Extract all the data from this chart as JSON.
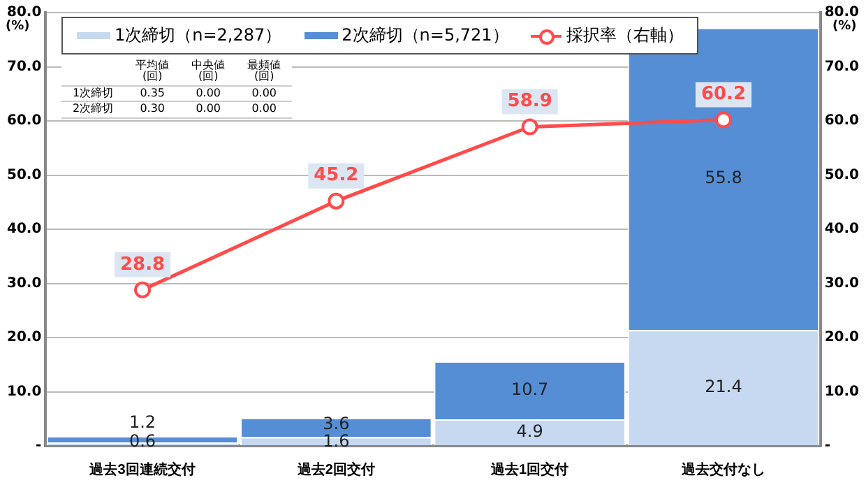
{
  "chart_data": {
    "type": "bar",
    "stacked": true,
    "categories": [
      "過去3回連続交付",
      "過去2回交付",
      "過去1回交付",
      "過去交付なし"
    ],
    "series": [
      {
        "name": "1次締切（n=2,287）",
        "color": "#c6d9f1",
        "values": [
          0.6,
          1.6,
          4.9,
          21.4
        ]
      },
      {
        "name": "2次締切（n=5,721）",
        "color": "#558ed5",
        "values": [
          1.2,
          3.6,
          10.7,
          55.8
        ]
      },
      {
        "name": "採択率（右軸）",
        "type": "line",
        "axis": "y2",
        "color": "#ff4b4b",
        "values": [
          28.8,
          45.2,
          58.9,
          60.2
        ],
        "marker": "circle"
      }
    ],
    "ylabel": "(%)",
    "y2label": "(%)",
    "ylim": [
      0,
      80
    ],
    "yticks": [
      {
        "value": 0,
        "label": "-"
      },
      {
        "value": 10,
        "label": "10.0"
      },
      {
        "value": 20,
        "label": "20.0"
      },
      {
        "value": 30,
        "label": "30.0"
      },
      {
        "value": 40,
        "label": "40.0"
      },
      {
        "value": 50,
        "label": "50.0"
      },
      {
        "value": 60,
        "label": "60.0"
      },
      {
        "value": 70,
        "label": "70.0"
      },
      {
        "value": 80,
        "label": "80.0"
      }
    ],
    "y2lim": [
      0,
      80
    ],
    "y2ticks": [
      {
        "value": 0,
        "label": "-"
      },
      {
        "value": 10,
        "label": "10.0"
      },
      {
        "value": 20,
        "label": "20.0"
      },
      {
        "value": 30,
        "label": "30.0"
      },
      {
        "value": 40,
        "label": "40.0"
      },
      {
        "value": 50,
        "label": "50.0"
      },
      {
        "value": 60,
        "label": "60.0"
      },
      {
        "value": 70,
        "label": "70.0"
      },
      {
        "value": 80,
        "label": "80.0"
      }
    ],
    "grid": "y",
    "legend": "top",
    "data_labels": true,
    "annotations": [
      "平均値\n(回)",
      "中央値\n(回)",
      "最頻値\n(回)",
      "1次締切",
      "0.35",
      "0.00",
      "0.00",
      "2次締切",
      "0.30",
      "0.00",
      "0.00"
    ]
  }
}
